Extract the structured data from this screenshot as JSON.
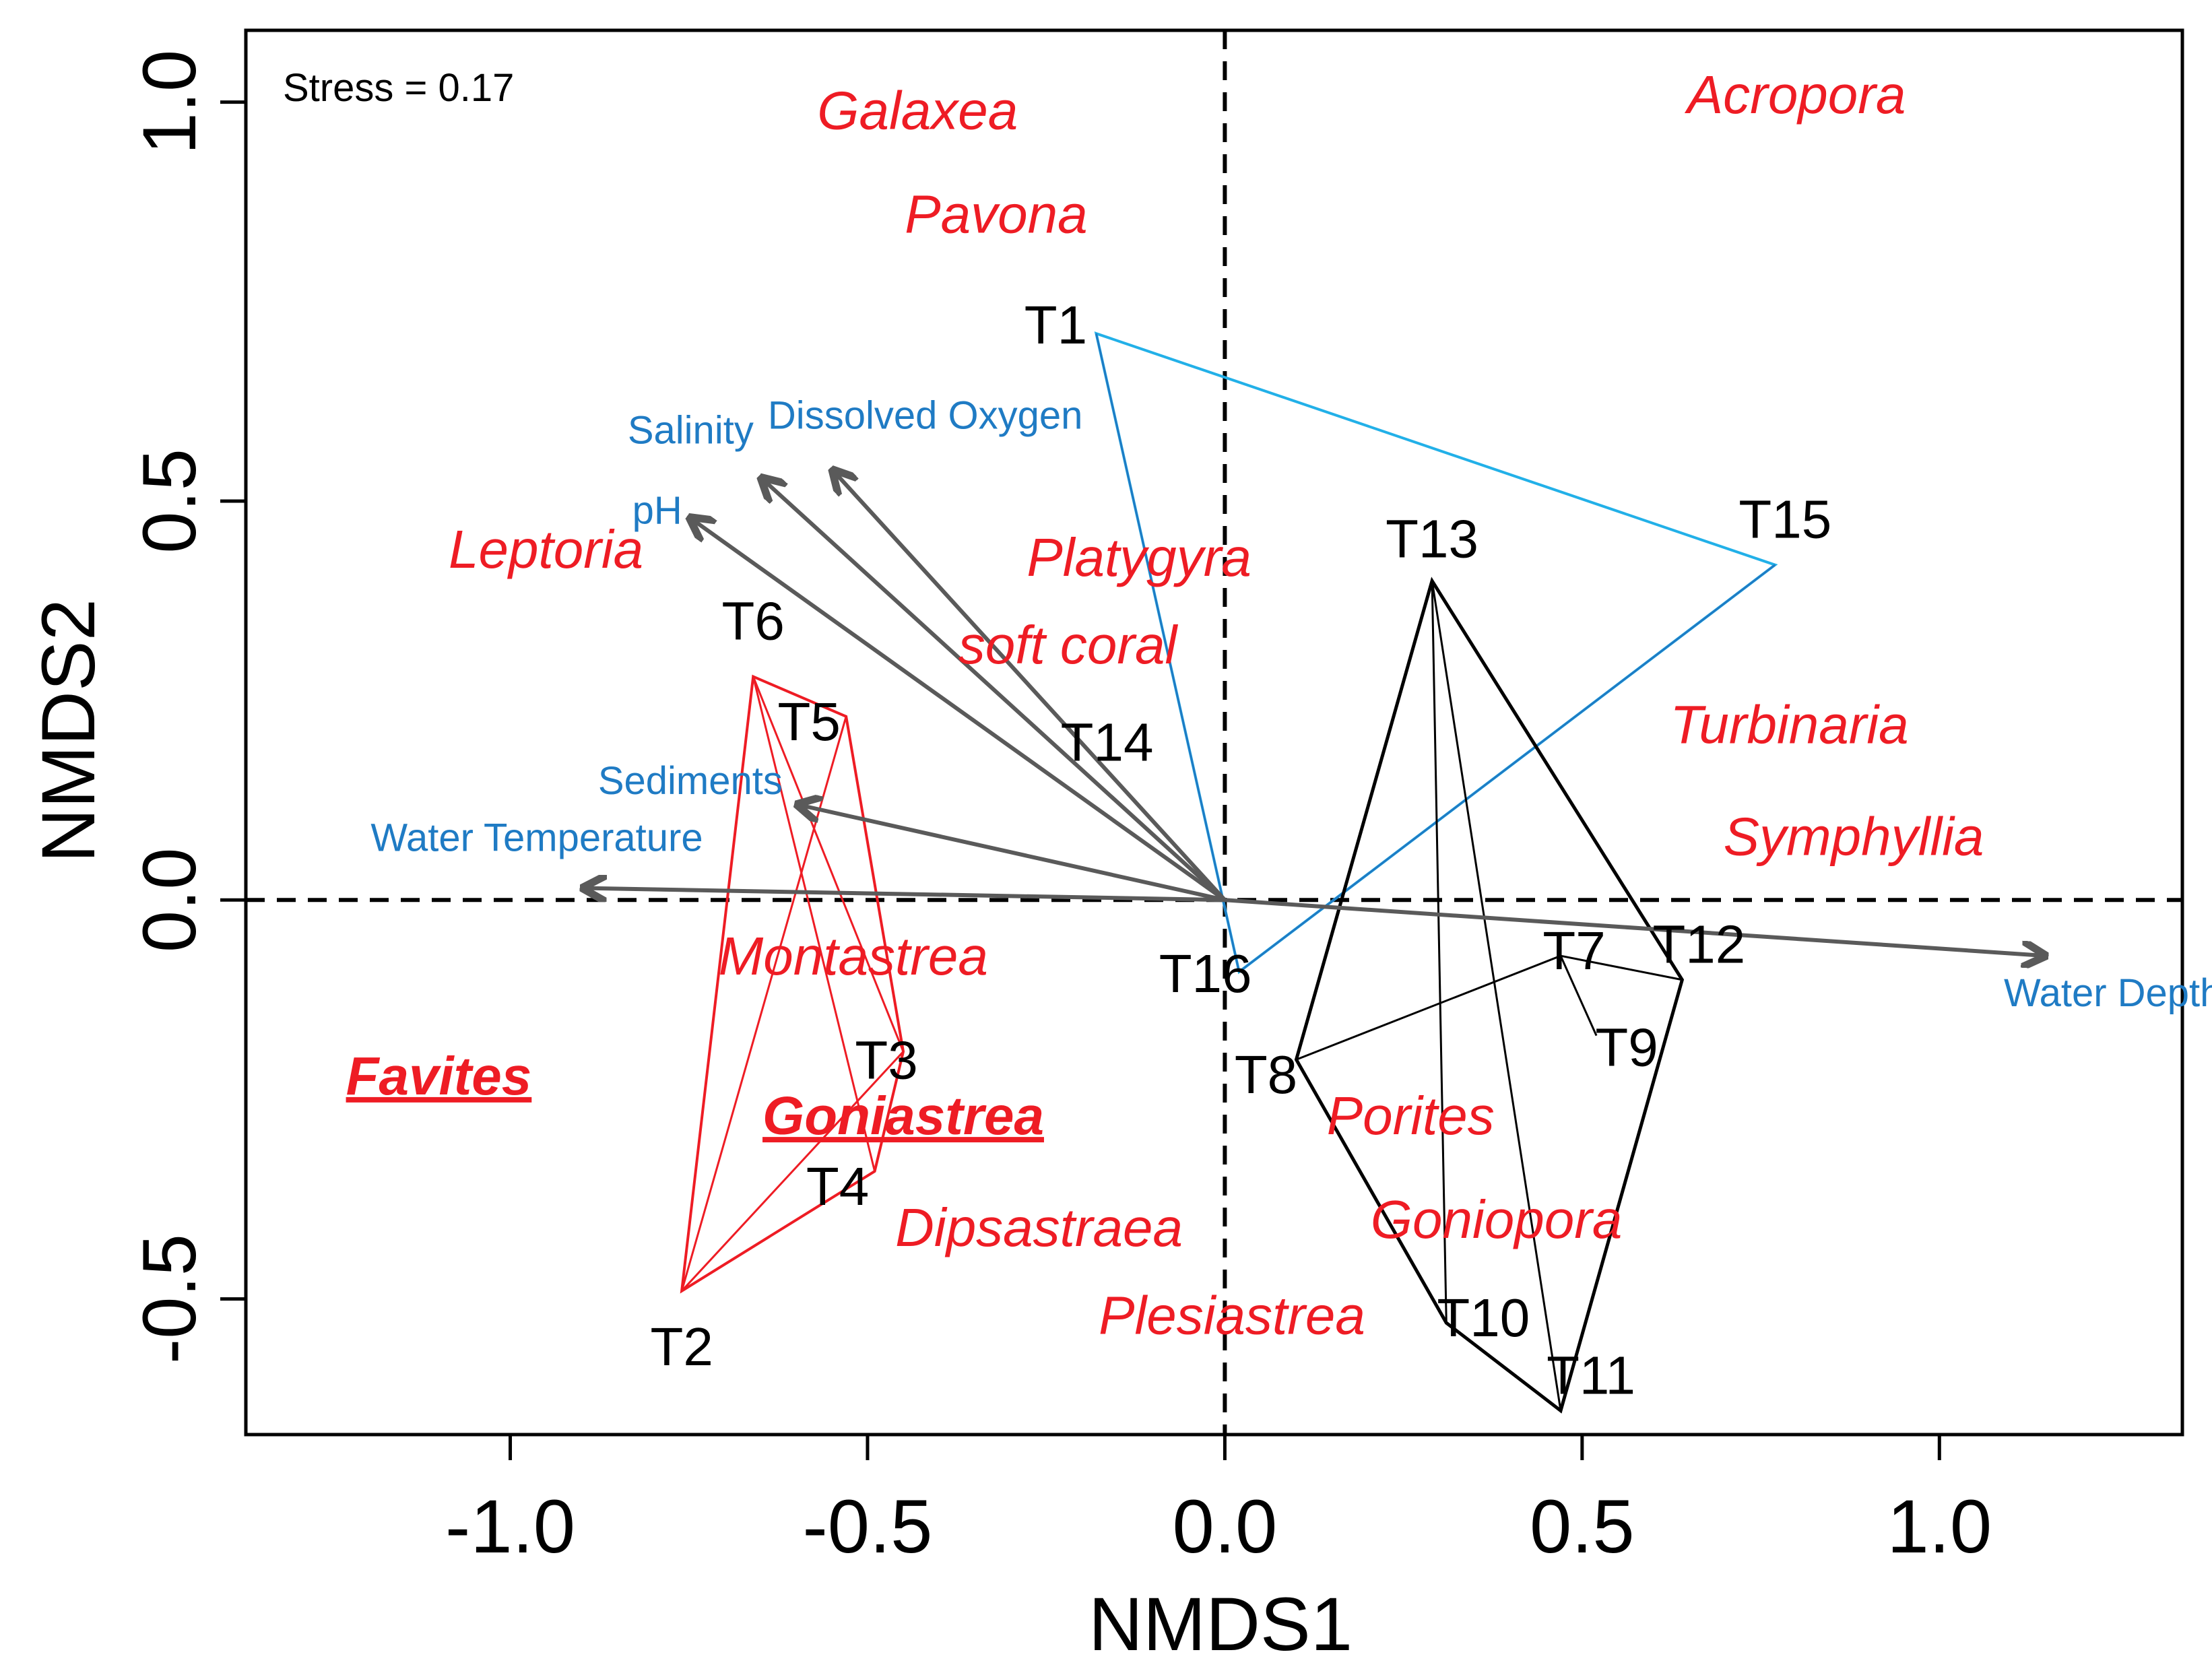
{
  "chart_data": {
    "type": "scatter",
    "subtype": "NMDS ordination biplot",
    "xlabel": "NMDS1",
    "ylabel": "NMDS2",
    "xlim": [
      -1.37,
      1.34
    ],
    "ylim": [
      -0.67,
      1.09
    ],
    "xticks": [
      -1.0,
      -0.5,
      0.0,
      0.5,
      1.0
    ],
    "xtick_labels": [
      "-1.0",
      "-0.5",
      "0.0",
      "0.5",
      "1.0"
    ],
    "yticks": [
      -0.5,
      0.0,
      0.5,
      1.0
    ],
    "ytick_labels": [
      "-0.5",
      "0.0",
      "0.5",
      "1.0"
    ],
    "stress_text": "Stress = 0.17",
    "colors": {
      "genus": "#ee1c24",
      "env_arrow": "#5a5a5a",
      "env_label": "#1f7bc4",
      "group_red": "#ee1c24",
      "group_cyan": "#22b0e8",
      "group_cyan_inner": "#1f7bc4",
      "group_black": "#000000",
      "site_label": "#000000"
    },
    "sites": [
      {
        "name": "T1",
        "x": -0.18,
        "y": 0.71
      },
      {
        "name": "T2",
        "x": -0.76,
        "y": -0.49
      },
      {
        "name": "T3",
        "x": -0.45,
        "y": -0.19
      },
      {
        "name": "T4",
        "x": -0.49,
        "y": -0.34
      },
      {
        "name": "T5",
        "x": -0.53,
        "y": 0.23
      },
      {
        "name": "T6",
        "x": -0.66,
        "y": 0.28
      },
      {
        "name": "T7",
        "x": 0.47,
        "y": -0.07
      },
      {
        "name": "T8",
        "x": 0.1,
        "y": -0.2
      },
      {
        "name": "T9",
        "x": 0.52,
        "y": -0.17
      },
      {
        "name": "T10",
        "x": 0.31,
        "y": -0.53
      },
      {
        "name": "T11",
        "x": 0.47,
        "y": -0.64
      },
      {
        "name": "T12",
        "x": 0.64,
        "y": -0.1
      },
      {
        "name": "T13",
        "x": 0.29,
        "y": 0.4
      },
      {
        "name": "T14",
        "x": -0.08,
        "y": 0.2
      },
      {
        "name": "T15",
        "x": 0.77,
        "y": 0.42
      },
      {
        "name": "T16",
        "x": 0.02,
        "y": -0.09
      }
    ],
    "genera": [
      {
        "name": "Galaxea",
        "x": -0.43,
        "y": 0.99
      },
      {
        "name": "Pavona",
        "x": -0.32,
        "y": 0.86
      },
      {
        "name": "Acropora",
        "x": 0.8,
        "y": 1.01
      },
      {
        "name": "Leptoria",
        "x": -0.95,
        "y": 0.44
      },
      {
        "name": "Platygyra",
        "x": -0.12,
        "y": 0.43
      },
      {
        "name": "soft coral",
        "x": -0.22,
        "y": 0.32
      },
      {
        "name": "Turbinaria",
        "x": 0.79,
        "y": 0.22
      },
      {
        "name": "Symphyllia",
        "x": 0.88,
        "y": 0.08
      },
      {
        "name": "Montastrea",
        "x": -0.52,
        "y": -0.07
      },
      {
        "name": "Favites",
        "x": -1.1,
        "y": -0.22,
        "bold": true,
        "underline": true
      },
      {
        "name": "Goniastrea",
        "x": -0.45,
        "y": -0.27,
        "bold": true,
        "underline": true
      },
      {
        "name": "Dipsastraea",
        "x": -0.26,
        "y": -0.41
      },
      {
        "name": "Porites",
        "x": 0.26,
        "y": -0.27
      },
      {
        "name": "Goniopora",
        "x": 0.38,
        "y": -0.4
      },
      {
        "name": "Plesiastrea",
        "x": 0.01,
        "y": -0.52
      }
    ],
    "env_vectors": [
      {
        "name": "Salinity",
        "x": -0.65,
        "y": 0.53
      },
      {
        "name": "pH",
        "x": -0.75,
        "y": 0.48
      },
      {
        "name": "Dissolved Oxygen",
        "x": -0.55,
        "y": 0.54
      },
      {
        "name": "Sediments",
        "x": -0.6,
        "y": 0.12
      },
      {
        "name": "Water Temperature",
        "x": -0.9,
        "y": 0.015
      },
      {
        "name": "Water Depth",
        "x": 1.15,
        "y": -0.07
      }
    ],
    "groups": [
      {
        "name": "red",
        "hull": [
          "T6",
          "T5",
          "T3",
          "T4",
          "T2"
        ],
        "inner": [
          [
            "T6",
            "T3"
          ],
          [
            "T5",
            "T2"
          ],
          [
            "T2",
            "T3"
          ],
          [
            "T2",
            "T4"
          ],
          [
            "T4",
            "T6"
          ]
        ]
      },
      {
        "name": "cyan",
        "hull": [
          "T1",
          "T15",
          "T16"
        ],
        "inner": [
          [
            "T1",
            "T16"
          ],
          [
            "T15",
            "T16"
          ]
        ]
      },
      {
        "name": "black",
        "hull": [
          "T13",
          "T12",
          "T11",
          "T10",
          "T8"
        ],
        "inner": [
          [
            "T13",
            "T10"
          ],
          [
            "T13",
            "T11"
          ],
          [
            "T7",
            "T8"
          ],
          [
            "T7",
            "T12"
          ],
          [
            "T7",
            "T9"
          ]
        ]
      }
    ]
  }
}
